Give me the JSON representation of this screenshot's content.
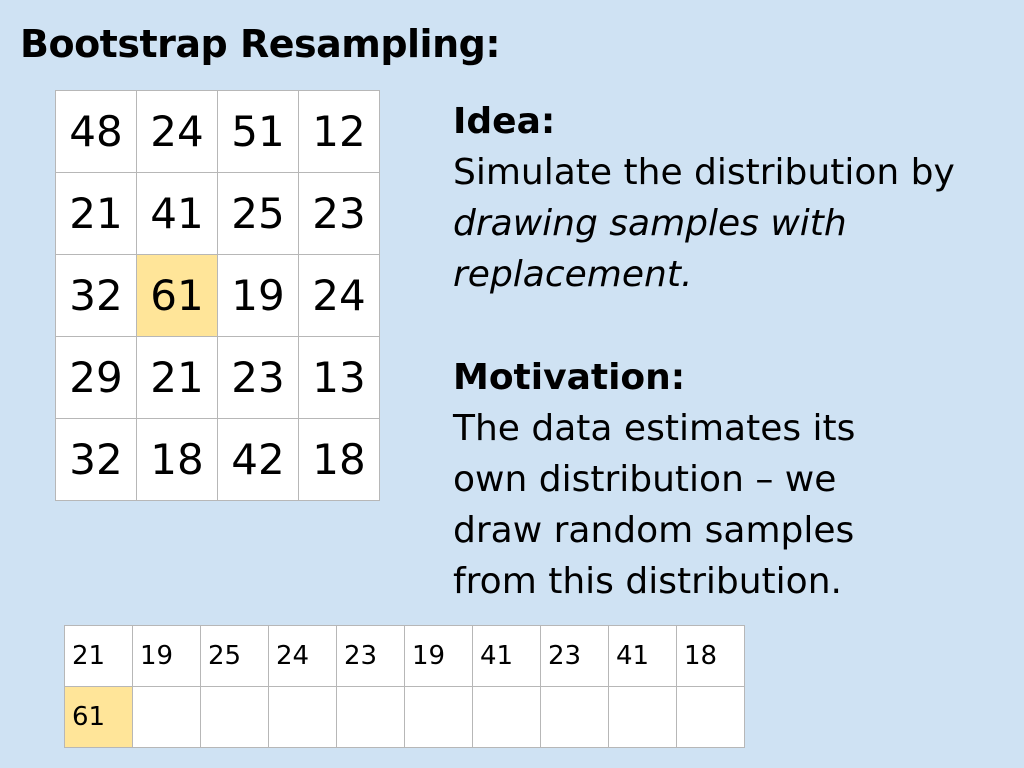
{
  "title": "Bootstrap Resampling:",
  "data_grid": [
    [
      "48",
      "24",
      "51",
      "12"
    ],
    [
      "21",
      "41",
      "25",
      "23"
    ],
    [
      "32",
      "61",
      "19",
      "24"
    ],
    [
      "29",
      "21",
      "23",
      "13"
    ],
    [
      "32",
      "18",
      "42",
      "18"
    ]
  ],
  "data_grid_highlight_color": "#ffe599",
  "idea": {
    "heading": "Idea:",
    "text_before": "Simulate the distribution by ",
    "text_italic": "drawing samples with replacement."
  },
  "motivation": {
    "heading": "Motivation:",
    "text": "The data estimates its own distribution – we draw random samples from this distribution."
  },
  "sample_grid": {
    "row1": [
      "21",
      "19",
      "25",
      "24",
      "23",
      "19",
      "41",
      "23",
      "41",
      "18"
    ],
    "row2": [
      "61",
      "",
      "",
      "",
      "",
      "",
      "",
      "",
      "",
      ""
    ]
  }
}
